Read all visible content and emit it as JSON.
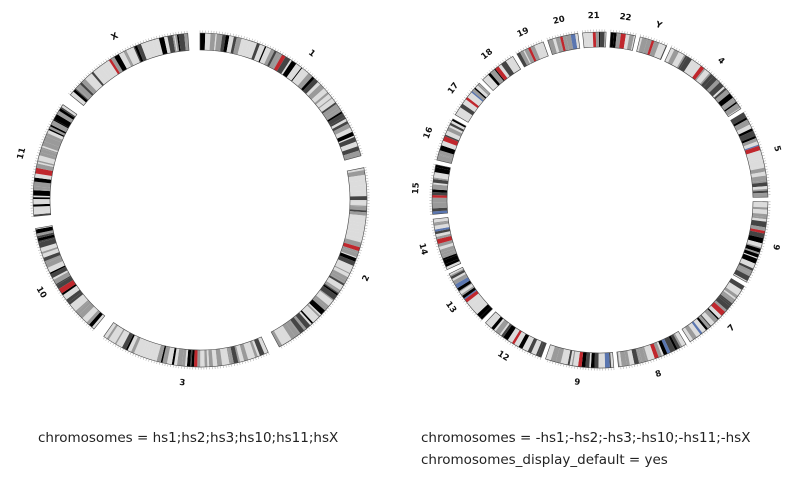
{
  "colors": {
    "band_light": "#dcdcdc",
    "band_mid": "#9a9a9a",
    "band_dark": "#444444",
    "band_black": "#000000",
    "centromere": "#c0272d",
    "variable": "#5a76b0",
    "outline": "#444444",
    "label": "#111111"
  },
  "panels": [
    {
      "id": "left",
      "caption": "chromosomes = hs1;hs2;hs3;hs10;hs11;hsX",
      "ideograms": [
        {
          "label": "1",
          "length": 249
        },
        {
          "label": "2",
          "length": 243
        },
        {
          "label": "3",
          "length": 198
        },
        {
          "label": "10",
          "length": 136
        },
        {
          "label": "11",
          "length": 135
        },
        {
          "label": "X",
          "length": 156
        }
      ]
    },
    {
      "id": "right",
      "caption": "chromosomes = -hs1;-hs2;-hs3;-hs10;-hs11;-hsX",
      "caption_2": "chromosomes_display_default = yes",
      "ideograms": [
        {
          "label": "4",
          "length": 191
        },
        {
          "label": "5",
          "length": 181
        },
        {
          "label": "6",
          "length": 171
        },
        {
          "label": "7",
          "length": 159
        },
        {
          "label": "8",
          "length": 146
        },
        {
          "label": "9",
          "length": 141
        },
        {
          "label": "12",
          "length": 134
        },
        {
          "label": "13",
          "length": 115
        },
        {
          "label": "14",
          "length": 107
        },
        {
          "label": "15",
          "length": 102
        },
        {
          "label": "16",
          "length": 90
        },
        {
          "label": "17",
          "length": 81
        },
        {
          "label": "18",
          "length": 78
        },
        {
          "label": "19",
          "length": 59
        },
        {
          "label": "20",
          "length": 63
        },
        {
          "label": "21",
          "length": 48
        },
        {
          "label": "22",
          "length": 51
        },
        {
          "label": "Y",
          "length": 57
        }
      ]
    }
  ]
}
